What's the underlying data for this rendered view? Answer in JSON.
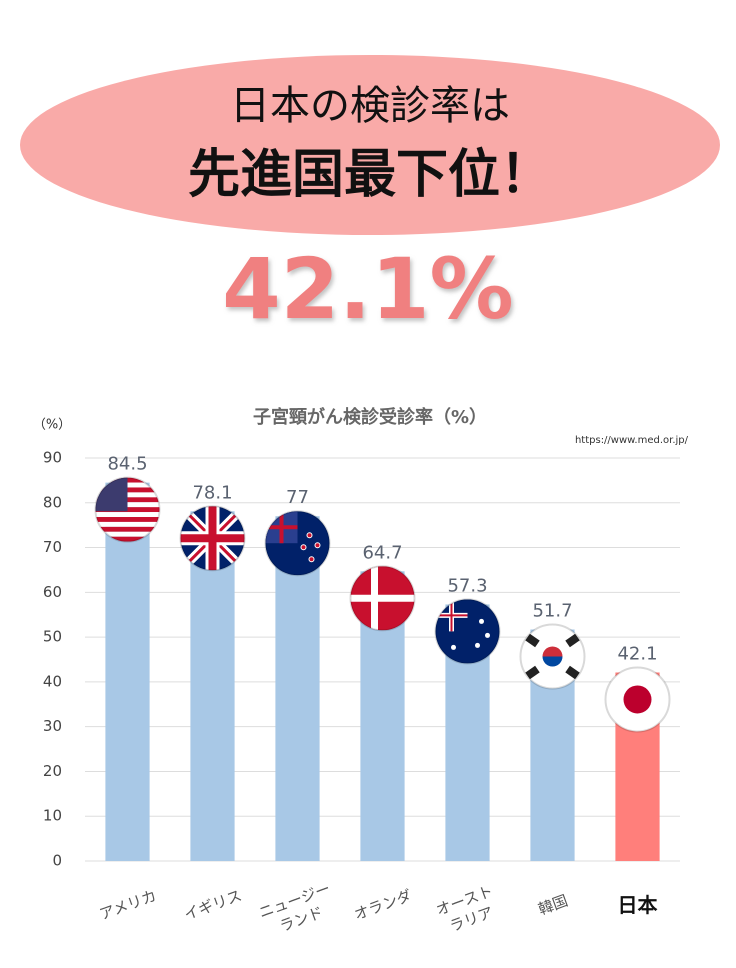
{
  "header": {
    "line1": "日本の検診率は",
    "line2": "先進国最下位！",
    "highlight": "42.1%"
  },
  "chart_data": {
    "type": "bar",
    "title": "子宮頸がん検診受診率（%）",
    "y_axis_label": "（%）",
    "source": "https://www.med.or.jp/",
    "categories": [
      "アメリカ",
      "イギリス",
      "ニュージー\nランド",
      "オランダ",
      "オースト\nラリア",
      "韓国",
      "日本"
    ],
    "values": [
      84.5,
      78.1,
      77,
      64.7,
      57.3,
      51.7,
      42.1
    ],
    "colors": [
      "#a8c8e6",
      "#a8c8e6",
      "#a8c8e6",
      "#a8c8e6",
      "#a8c8e6",
      "#a8c8e6",
      "#ff7f7b"
    ],
    "ylim": [
      0,
      90
    ],
    "yticks": [
      0,
      10,
      20,
      30,
      40,
      50,
      60,
      70,
      80,
      90
    ],
    "grid": true
  }
}
